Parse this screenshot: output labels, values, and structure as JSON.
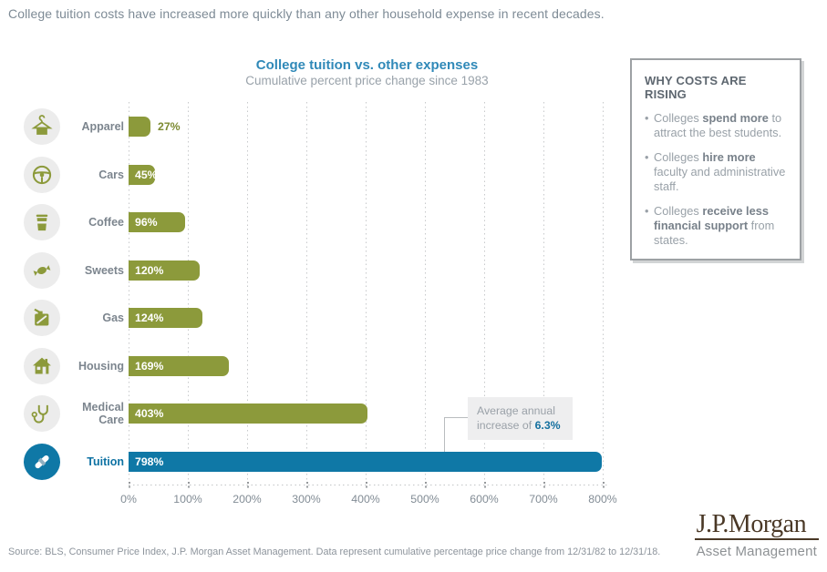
{
  "page": {
    "headline": "College tuition costs have increased more quickly than any other household expense in recent decades.",
    "source": "Source: BLS, Consumer Price Index, J.P. Morgan Asset Management. Data represent cumulative percentage price change from 12/31/82 to 12/31/18."
  },
  "chart_data": {
    "type": "bar",
    "orientation": "horizontal",
    "title": "College tuition vs. other expenses",
    "subtitle": "Cumulative percent price change since 1983",
    "categories": [
      "Apparel",
      "Cars",
      "Coffee",
      "Sweets",
      "Gas",
      "Housing",
      "Medical Care",
      "Tuition"
    ],
    "values": [
      27,
      45,
      96,
      120,
      124,
      169,
      403,
      798
    ],
    "value_labels": [
      "27%",
      "45%",
      "96%",
      "120%",
      "124%",
      "169%",
      "403%",
      "798%"
    ],
    "label_position": [
      "outside",
      "inside",
      "inside",
      "inside",
      "inside",
      "inside",
      "inside",
      "inside"
    ],
    "icons": [
      "hanger",
      "steering-wheel",
      "coffee-cup",
      "candy",
      "gas-can",
      "house",
      "stethoscope",
      "diploma"
    ],
    "highlight_category": "Tuition",
    "xlim": [
      0,
      800
    ],
    "xticks": [
      "0%",
      "100%",
      "200%",
      "300%",
      "400%",
      "500%",
      "600%",
      "700%",
      "800%"
    ],
    "grid": "dotted-vertical",
    "bar_color": "#8C9A3B",
    "highlight_color": "#0F78A6",
    "annotation": "Average annual increase of 6.3%"
  },
  "callout": {
    "line1": "Average annual",
    "line2_prefix": "increase of ",
    "value": "6.3%"
  },
  "sidebar": {
    "title": "WHY COSTS ARE RISING",
    "bullet_char": "•",
    "bullets": [
      {
        "pre": "Colleges ",
        "bold": "spend more",
        "post": " to attract the best students."
      },
      {
        "pre": "Colleges ",
        "bold": "hire more",
        "post": " faculty and administrative staff."
      },
      {
        "pre": "Colleges ",
        "bold": "receive less financial support",
        "post": " from states."
      }
    ]
  },
  "logo": {
    "brand": "J.P.Morgan",
    "division": "Asset Management"
  },
  "colors": {
    "accent_green": "#8C9A3B",
    "accent_blue": "#0F78A6",
    "title_blue": "#3089B8",
    "text_gray": "#7E8B96"
  }
}
